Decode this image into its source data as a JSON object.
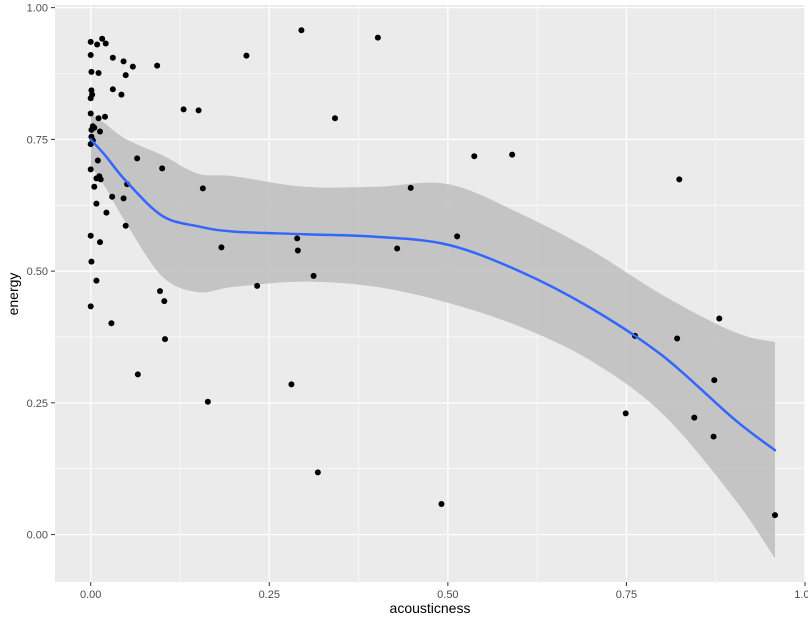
{
  "chart_data": {
    "type": "scatter",
    "title": "",
    "xlabel": "acousticness",
    "ylabel": "energy",
    "xlim": [
      -0.05,
      1.0
    ],
    "ylim": [
      -0.09,
      1.005
    ],
    "x_ticks": [
      0.0,
      0.25,
      0.5,
      0.75,
      1.0
    ],
    "x_tick_labels": [
      "0.00",
      "0.25",
      "0.50",
      "0.75",
      "1.00"
    ],
    "y_ticks": [
      0.0,
      0.25,
      0.5,
      0.75,
      1.0
    ],
    "y_tick_labels": [
      "0.00",
      "0.25",
      "0.50",
      "0.75",
      "1.00"
    ],
    "grid": true,
    "legend": "none",
    "colors": {
      "panel_background": "#ebebeb",
      "grid_major": "#ffffff",
      "points": "#000000",
      "smooth_line": "#3366ff",
      "confidence_band": "#bdbdbd"
    },
    "points": [
      {
        "x": 0.0,
        "y": 0.935
      },
      {
        "x": 0.009,
        "y": 0.93
      },
      {
        "x": 0.016,
        "y": 0.941
      },
      {
        "x": 0.021,
        "y": 0.932
      },
      {
        "x": 0.0,
        "y": 0.91
      },
      {
        "x": 0.001,
        "y": 0.878
      },
      {
        "x": 0.011,
        "y": 0.876
      },
      {
        "x": 0.031,
        "y": 0.905
      },
      {
        "x": 0.046,
        "y": 0.898
      },
      {
        "x": 0.059,
        "y": 0.888
      },
      {
        "x": 0.049,
        "y": 0.872
      },
      {
        "x": 0.093,
        "y": 0.89
      },
      {
        "x": 0.001,
        "y": 0.843
      },
      {
        "x": 0.002,
        "y": 0.835
      },
      {
        "x": 0.0,
        "y": 0.828
      },
      {
        "x": 0.031,
        "y": 0.845
      },
      {
        "x": 0.043,
        "y": 0.835
      },
      {
        "x": 0.0,
        "y": 0.799
      },
      {
        "x": 0.011,
        "y": 0.79
      },
      {
        "x": 0.02,
        "y": 0.793
      },
      {
        "x": 0.003,
        "y": 0.775
      },
      {
        "x": 0.001,
        "y": 0.768
      },
      {
        "x": 0.005,
        "y": 0.772
      },
      {
        "x": 0.013,
        "y": 0.765
      },
      {
        "x": 0.001,
        "y": 0.755
      },
      {
        "x": 0.003,
        "y": 0.748
      },
      {
        "x": 0.0,
        "y": 0.741
      },
      {
        "x": 0.01,
        "y": 0.71
      },
      {
        "x": 0.065,
        "y": 0.714
      },
      {
        "x": 0.0,
        "y": 0.693
      },
      {
        "x": 0.008,
        "y": 0.676
      },
      {
        "x": 0.012,
        "y": 0.68
      },
      {
        "x": 0.014,
        "y": 0.674
      },
      {
        "x": 0.1,
        "y": 0.695
      },
      {
        "x": 0.005,
        "y": 0.66
      },
      {
        "x": 0.051,
        "y": 0.665
      },
      {
        "x": 0.157,
        "y": 0.657
      },
      {
        "x": 0.03,
        "y": 0.641
      },
      {
        "x": 0.046,
        "y": 0.638
      },
      {
        "x": 0.008,
        "y": 0.628
      },
      {
        "x": 0.022,
        "y": 0.611
      },
      {
        "x": 0.049,
        "y": 0.586
      },
      {
        "x": 0.0,
        "y": 0.567
      },
      {
        "x": 0.013,
        "y": 0.555
      },
      {
        "x": 0.183,
        "y": 0.545
      },
      {
        "x": 0.001,
        "y": 0.518
      },
      {
        "x": 0.008,
        "y": 0.482
      },
      {
        "x": 0.097,
        "y": 0.462
      },
      {
        "x": 0.103,
        "y": 0.443
      },
      {
        "x": 0.0,
        "y": 0.433
      },
      {
        "x": 0.029,
        "y": 0.401
      },
      {
        "x": 0.104,
        "y": 0.371
      },
      {
        "x": 0.066,
        "y": 0.304
      },
      {
        "x": 0.164,
        "y": 0.252
      },
      {
        "x": 0.218,
        "y": 0.909
      },
      {
        "x": 0.295,
        "y": 0.957
      },
      {
        "x": 0.402,
        "y": 0.943
      },
      {
        "x": 0.13,
        "y": 0.807
      },
      {
        "x": 0.151,
        "y": 0.805
      },
      {
        "x": 0.342,
        "y": 0.79
      },
      {
        "x": 0.537,
        "y": 0.718
      },
      {
        "x": 0.59,
        "y": 0.721
      },
      {
        "x": 0.448,
        "y": 0.658
      },
      {
        "x": 0.513,
        "y": 0.566
      },
      {
        "x": 0.289,
        "y": 0.562
      },
      {
        "x": 0.29,
        "y": 0.539
      },
      {
        "x": 0.429,
        "y": 0.543
      },
      {
        "x": 0.312,
        "y": 0.491
      },
      {
        "x": 0.233,
        "y": 0.472
      },
      {
        "x": 0.281,
        "y": 0.285
      },
      {
        "x": 0.318,
        "y": 0.118
      },
      {
        "x": 0.491,
        "y": 0.058
      },
      {
        "x": 0.824,
        "y": 0.674
      },
      {
        "x": 0.88,
        "y": 0.41
      },
      {
        "x": 0.762,
        "y": 0.377
      },
      {
        "x": 0.821,
        "y": 0.372
      },
      {
        "x": 0.873,
        "y": 0.293
      },
      {
        "x": 0.749,
        "y": 0.23
      },
      {
        "x": 0.845,
        "y": 0.222
      },
      {
        "x": 0.872,
        "y": 0.186
      },
      {
        "x": 0.958,
        "y": 0.037
      }
    ],
    "smooth": {
      "method": "loess",
      "x": [
        0.0,
        0.02,
        0.05,
        0.1,
        0.15,
        0.2,
        0.3,
        0.4,
        0.5,
        0.6,
        0.7,
        0.8,
        0.9,
        0.958
      ],
      "y": [
        0.75,
        0.72,
        0.67,
        0.605,
        0.585,
        0.575,
        0.57,
        0.565,
        0.55,
        0.5,
        0.43,
        0.34,
        0.22,
        0.16
      ],
      "lower": [
        0.7,
        0.66,
        0.59,
        0.49,
        0.46,
        0.47,
        0.48,
        0.47,
        0.44,
        0.395,
        0.33,
        0.23,
        0.07,
        -0.045
      ],
      "upper": [
        0.8,
        0.78,
        0.75,
        0.72,
        0.685,
        0.68,
        0.66,
        0.66,
        0.665,
        0.61,
        0.54,
        0.455,
        0.385,
        0.365
      ]
    }
  }
}
